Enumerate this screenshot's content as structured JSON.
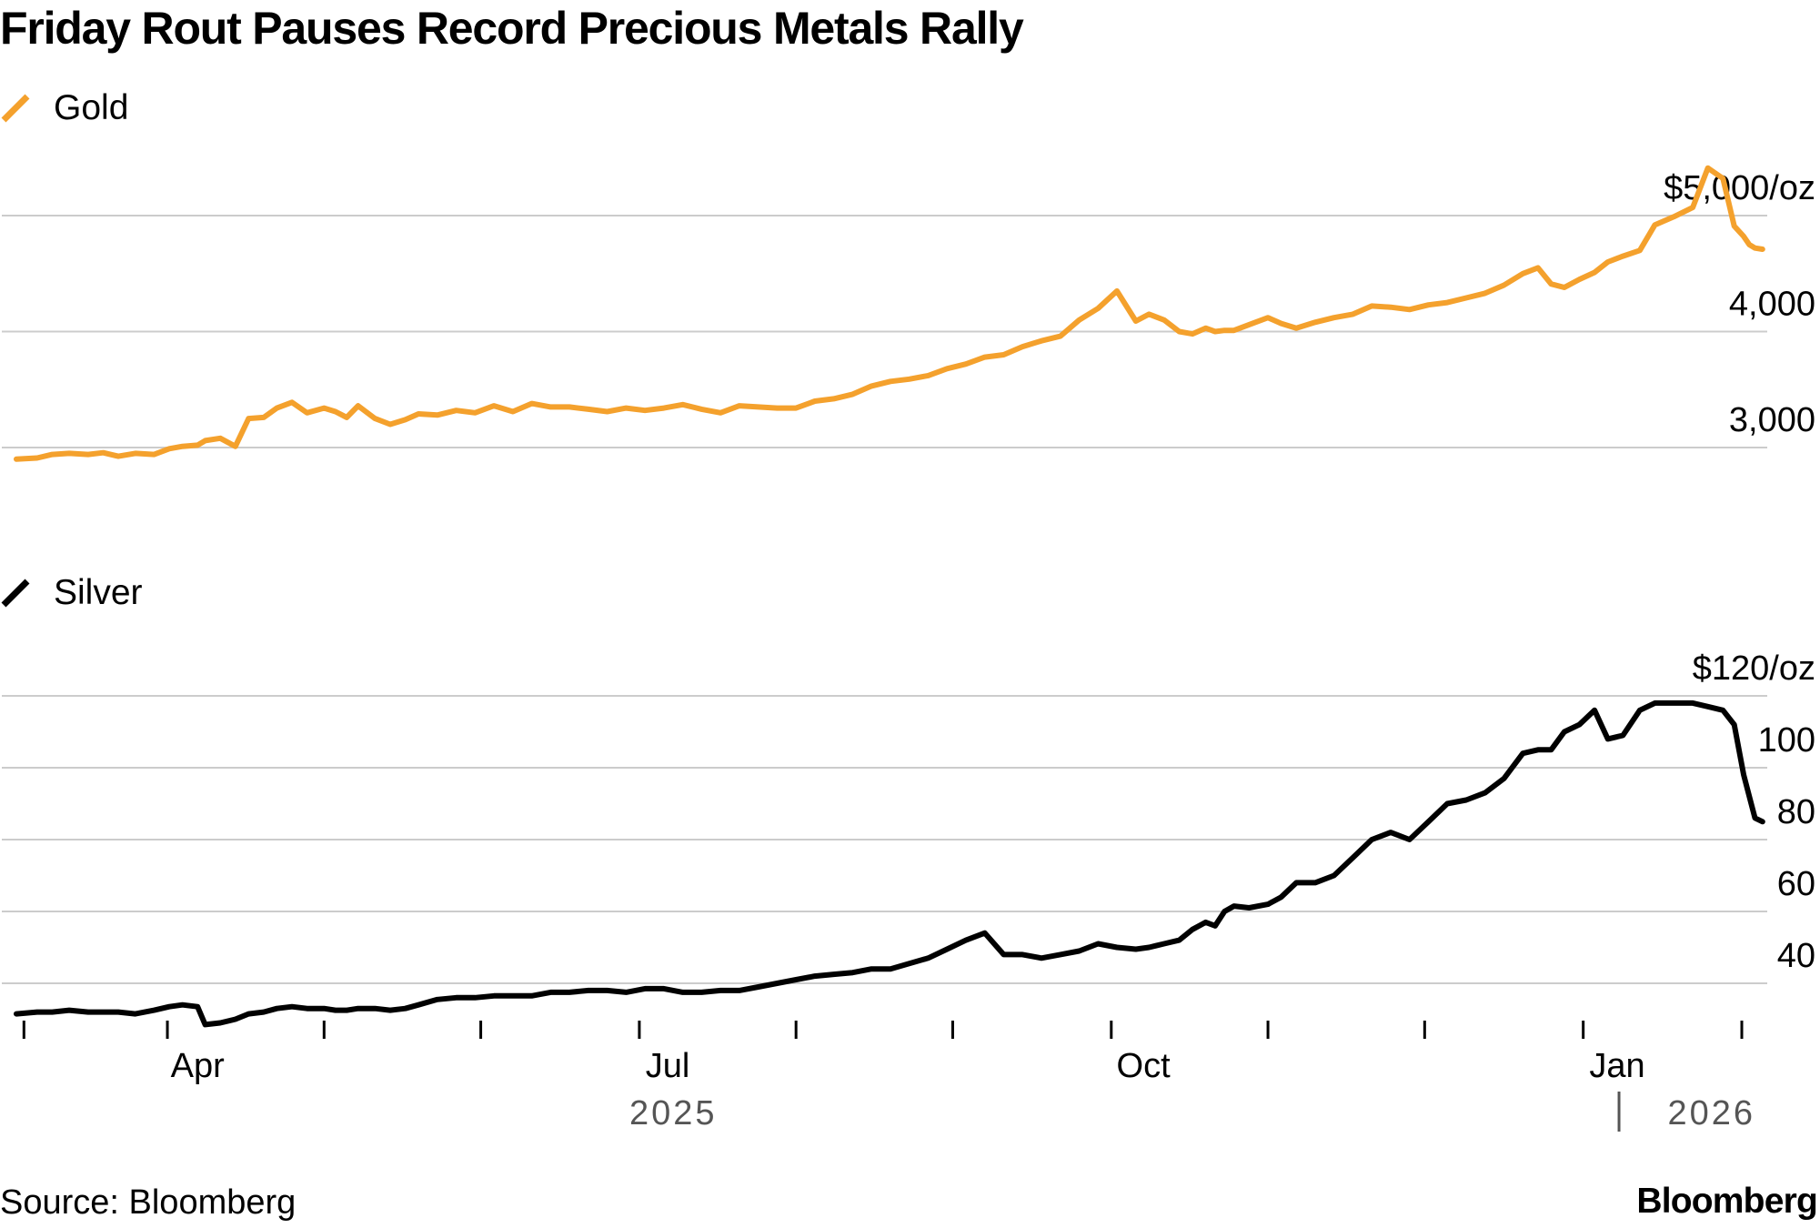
{
  "title": "Friday Rout Pauses Record Precious Metals Rally",
  "source": "Source: Bloomberg",
  "brand": "Bloomberg",
  "colors": {
    "gold": "#f4a12d",
    "silver": "#000000",
    "grid": "#cccccc",
    "year_label": "#555555"
  },
  "x_axis": {
    "range": [
      2025.152,
      2026.079
    ],
    "tick_positions": [
      2025.156,
      2025.232,
      2025.315,
      2025.398,
      2025.482,
      2025.565,
      2025.648,
      2025.732,
      2025.815,
      2025.898,
      2025.982,
      2026.066
    ],
    "month_labels": [
      {
        "label": "Apr",
        "x": 2025.248
      },
      {
        "label": "Jul",
        "x": 2025.497
      },
      {
        "label": "Oct",
        "x": 2025.749
      },
      {
        "label": "Jan",
        "x": 2026.0
      }
    ],
    "year_labels": [
      {
        "label": "2025",
        "x": 2025.5
      },
      {
        "label": "2026",
        "x": 2026.05
      }
    ]
  },
  "chart_data": [
    {
      "type": "line",
      "title": "Gold",
      "unit": "$/oz",
      "ylim": [
        2800,
        5300
      ],
      "yticks": [
        {
          "value": 3000,
          "label": "3,000"
        },
        {
          "value": 4000,
          "label": "4,000"
        },
        {
          "value": 5000,
          "label": "$5,000/oz"
        }
      ],
      "series": [
        {
          "name": "Gold",
          "x": [
            2025.152,
            2025.163,
            2025.171,
            2025.18,
            2025.19,
            2025.198,
            2025.206,
            2025.215,
            2025.225,
            2025.233,
            2025.24,
            2025.248,
            2025.252,
            2025.26,
            2025.268,
            2025.275,
            2025.283,
            2025.29,
            2025.298,
            2025.306,
            2025.315,
            2025.321,
            2025.327,
            2025.333,
            2025.342,
            2025.35,
            2025.358,
            2025.365,
            2025.375,
            2025.385,
            2025.395,
            2025.405,
            2025.415,
            2025.425,
            2025.435,
            2025.445,
            2025.455,
            2025.465,
            2025.475,
            2025.485,
            2025.495,
            2025.505,
            2025.515,
            2025.525,
            2025.535,
            2025.545,
            2025.555,
            2025.565,
            2025.575,
            2025.585,
            2025.595,
            2025.605,
            2025.615,
            2025.625,
            2025.635,
            2025.645,
            2025.655,
            2025.665,
            2025.675,
            2025.685,
            2025.695,
            2025.705,
            2025.715,
            2025.725,
            2025.735,
            2025.745,
            2025.752,
            2025.76,
            2025.768,
            2025.775,
            2025.782,
            2025.787,
            2025.792,
            2025.797,
            2025.805,
            2025.815,
            2025.822,
            2025.83,
            2025.84,
            2025.85,
            2025.86,
            2025.87,
            2025.88,
            2025.89,
            2025.9,
            2025.91,
            2025.92,
            2025.93,
            2025.94,
            2025.95,
            2025.958,
            2025.965,
            2025.972,
            2025.98,
            2025.988,
            2025.995,
            2026.003,
            2026.012,
            2026.02,
            2026.03,
            2026.04,
            2026.048,
            2026.056,
            2026.062,
            2026.067,
            2026.07,
            2026.073,
            2026.077
          ],
          "values": [
            2900,
            2910,
            2940,
            2950,
            2940,
            2955,
            2925,
            2950,
            2940,
            2990,
            3010,
            3020,
            3060,
            3080,
            3010,
            3250,
            3260,
            3340,
            3390,
            3300,
            3340,
            3310,
            3260,
            3360,
            3250,
            3200,
            3240,
            3290,
            3280,
            3320,
            3300,
            3360,
            3310,
            3380,
            3350,
            3350,
            3330,
            3310,
            3340,
            3320,
            3340,
            3370,
            3330,
            3300,
            3360,
            3350,
            3340,
            3340,
            3400,
            3420,
            3460,
            3530,
            3570,
            3590,
            3620,
            3680,
            3720,
            3780,
            3800,
            3870,
            3920,
            3960,
            4100,
            4200,
            4350,
            4090,
            4150,
            4100,
            4000,
            3980,
            4030,
            4000,
            4010,
            4010,
            4060,
            4120,
            4070,
            4030,
            4080,
            4120,
            4150,
            4220,
            4210,
            4190,
            4230,
            4250,
            4290,
            4330,
            4400,
            4500,
            4550,
            4410,
            4380,
            4450,
            4510,
            4600,
            4650,
            4700,
            4920,
            4990,
            5070,
            5410,
            5320,
            4910,
            4820,
            4750,
            4720,
            4710
          ]
        }
      ]
    },
    {
      "type": "line",
      "title": "Silver",
      "unit": "$/oz",
      "ylim": [
        20,
        125
      ],
      "yticks": [
        {
          "value": 40,
          "label": "40"
        },
        {
          "value": 60,
          "label": "60"
        },
        {
          "value": 80,
          "label": "80"
        },
        {
          "value": 100,
          "label": "100"
        },
        {
          "value": 120,
          "label": "$120/oz"
        }
      ],
      "series": [
        {
          "name": "Silver",
          "x": [
            2025.152,
            2025.163,
            2025.171,
            2025.18,
            2025.19,
            2025.198,
            2025.206,
            2025.215,
            2025.225,
            2025.233,
            2025.24,
            2025.248,
            2025.252,
            2025.26,
            2025.268,
            2025.275,
            2025.283,
            2025.29,
            2025.298,
            2025.306,
            2025.315,
            2025.321,
            2025.327,
            2025.333,
            2025.342,
            2025.35,
            2025.358,
            2025.365,
            2025.375,
            2025.385,
            2025.395,
            2025.405,
            2025.415,
            2025.425,
            2025.435,
            2025.445,
            2025.455,
            2025.465,
            2025.475,
            2025.485,
            2025.495,
            2025.505,
            2025.515,
            2025.525,
            2025.535,
            2025.545,
            2025.555,
            2025.565,
            2025.575,
            2025.585,
            2025.595,
            2025.605,
            2025.615,
            2025.625,
            2025.635,
            2025.645,
            2025.655,
            2025.665,
            2025.675,
            2025.685,
            2025.695,
            2025.705,
            2025.715,
            2025.725,
            2025.735,
            2025.745,
            2025.752,
            2025.76,
            2025.768,
            2025.775,
            2025.782,
            2025.787,
            2025.792,
            2025.797,
            2025.805,
            2025.815,
            2025.822,
            2025.83,
            2025.84,
            2025.85,
            2025.86,
            2025.87,
            2025.88,
            2025.89,
            2025.9,
            2025.91,
            2025.92,
            2025.93,
            2025.94,
            2025.95,
            2025.958,
            2025.965,
            2025.972,
            2025.98,
            2025.988,
            2025.995,
            2026.003,
            2026.012,
            2026.02,
            2026.03,
            2026.04,
            2026.048,
            2026.056,
            2026.062,
            2026.067,
            2026.07,
            2026.073,
            2026.077
          ],
          "values": [
            31.5,
            32,
            32,
            32.5,
            32,
            32,
            32,
            31.5,
            32.5,
            33.5,
            34,
            33.5,
            28.5,
            29,
            30,
            31.5,
            32,
            33,
            33.5,
            33,
            33,
            32.5,
            32.5,
            33,
            33,
            32.5,
            33,
            34,
            35.5,
            36,
            36,
            36.5,
            36.5,
            36.5,
            37.5,
            37.5,
            38,
            38,
            37.5,
            38.5,
            38.5,
            37.5,
            37.5,
            38,
            38,
            39,
            40,
            41,
            42,
            42.5,
            43,
            44,
            44,
            45.5,
            47,
            49.5,
            52,
            54,
            48,
            48,
            47,
            48,
            49,
            51,
            50,
            49.5,
            50,
            51,
            52,
            55,
            57,
            56,
            60,
            61.5,
            61,
            62,
            64,
            68,
            68,
            70,
            75,
            80,
            82,
            80,
            85,
            90,
            91,
            93,
            97,
            104,
            105,
            105,
            110,
            112,
            116,
            108,
            109,
            116,
            118,
            118,
            118,
            117,
            116,
            112,
            98,
            92,
            86,
            85
          ]
        }
      ]
    }
  ]
}
